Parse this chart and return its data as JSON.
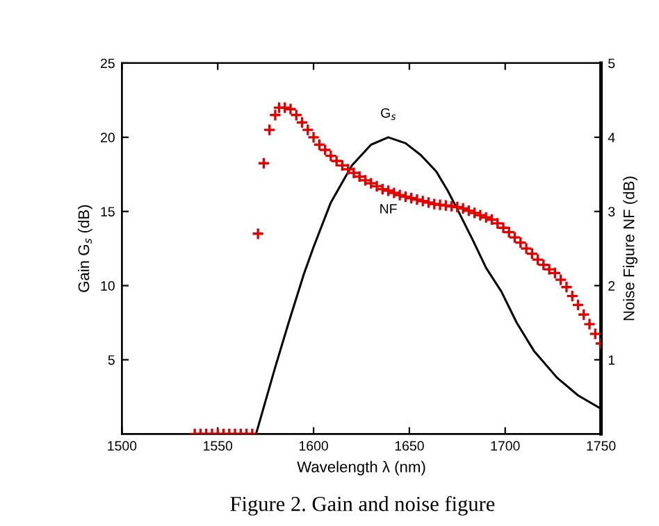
{
  "chart_data": {
    "type": "line",
    "xlabel": "Wavelength λ (nm)",
    "ylabel": "Gain G$_{s}$ (dB)",
    "y2label": "Noise Figure NF (dB)",
    "xlim": [
      1500,
      1750
    ],
    "xticks": [
      1500,
      1550,
      1600,
      1650,
      1700,
      1750
    ],
    "ylim": [
      0,
      25
    ],
    "yticks": [
      5,
      10,
      15,
      20,
      25
    ],
    "y2lim": [
      0,
      5
    ],
    "y2ticks": [
      1,
      2,
      3,
      4,
      5
    ],
    "grid": false,
    "legend": false,
    "series": [
      {
        "color": "#000000",
        "marker": "none",
        "line_style": "solid",
        "x": [
          1538,
          1570,
          1580,
          1587,
          1595,
          1600,
          1609,
          1620,
          1630,
          1639,
          1648,
          1656,
          1664,
          1670,
          1676,
          1683,
          1690,
          1698,
          1706,
          1715,
          1727,
          1738,
          1750
        ],
        "values": [
          0,
          0,
          4.5,
          7.5,
          10.8,
          12.6,
          15.6,
          18.1,
          19.5,
          20,
          19.6,
          18.8,
          17.7,
          16.4,
          14.9,
          13.1,
          11.2,
          9.6,
          7.5,
          5.6,
          3.8,
          2.6,
          1.7
        ]
      },
      {
        "type": "scatter",
        "axis": "y2",
        "color": "#e00000",
        "marker": "cross",
        "x": [
          1538,
          1541,
          1544,
          1547,
          1550,
          1553,
          1556,
          1559,
          1562,
          1565,
          1568,
          1571,
          1574,
          1577,
          1580,
          1582,
          1585,
          1588,
          1591,
          1594,
          1597,
          1600,
          1603,
          1606,
          1609,
          1612,
          1615,
          1618,
          1621,
          1624,
          1627,
          1630,
          1633,
          1636,
          1639,
          1642,
          1645,
          1648,
          1651,
          1654,
          1657,
          1660,
          1663,
          1666,
          1669,
          1672,
          1675,
          1678,
          1681,
          1684,
          1687,
          1690,
          1693,
          1696,
          1699,
          1702,
          1705,
          1708,
          1711,
          1714,
          1717,
          1720,
          1723,
          1726,
          1729,
          1732,
          1735,
          1738,
          1741,
          1744,
          1747,
          1750
        ],
        "values": [
          0,
          0,
          0,
          0,
          0,
          0,
          0,
          0,
          0,
          0,
          0,
          2.7,
          3.65,
          4.1,
          4.3,
          4.4,
          4.4,
          4.38,
          4.3,
          4.2,
          4.1,
          4.0,
          3.9,
          3.83,
          3.75,
          3.68,
          3.62,
          3.57,
          3.52,
          3.47,
          3.42,
          3.38,
          3.34,
          3.3,
          3.28,
          3.25,
          3.22,
          3.2,
          3.18,
          3.16,
          3.14,
          3.12,
          3.1,
          3.09,
          3.08,
          3.07,
          3.06,
          3.04,
          3.01,
          2.98,
          2.95,
          2.92,
          2.89,
          2.84,
          2.78,
          2.72,
          2.65,
          2.58,
          2.5,
          2.43,
          2.35,
          2.28,
          2.22,
          2.17,
          2.08,
          1.98,
          1.86,
          1.74,
          1.61,
          1.48,
          1.35,
          1.22
        ]
      }
    ],
    "annotations": [
      {
        "text": "G$_{s}$",
        "x": 1639,
        "y": 20
      },
      {
        "text": "NF",
        "x": 1639,
        "y": 16.4
      },
      "Figure 2. Gain and noise figure"
    ]
  }
}
